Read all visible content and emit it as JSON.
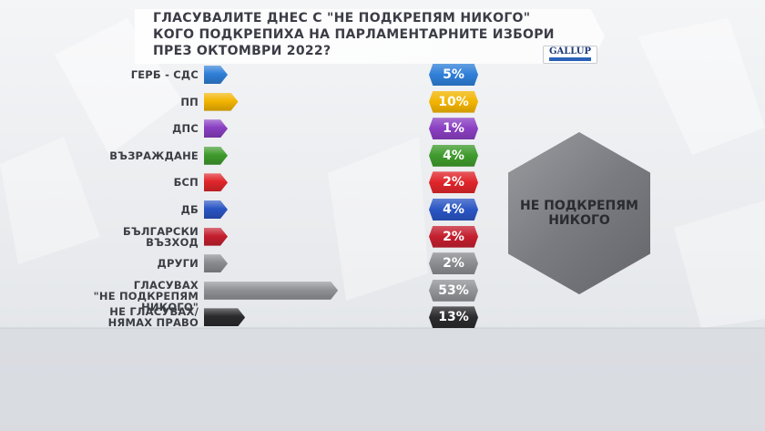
{
  "title": {
    "line1": "ГЛАСУВАЛИТЕ ДНЕС С \"НЕ ПОДКРЕПЯМ НИКОГО\"",
    "line2": "КОГО ПОДКРЕПИХА НА ПАРЛАМЕНТАРНИТЕ ИЗБОРИ",
    "line3": "ПРЕЗ ОКТОМВРИ 2022?"
  },
  "logo": {
    "text": "GALLUP",
    "icon": "gallup-logo"
  },
  "highlight": {
    "line1": "НЕ ПОДКРЕПЯМ",
    "line2": "НИКОГО",
    "color": "#7a7b80"
  },
  "chart_data": {
    "type": "bar",
    "orientation": "horizontal",
    "title": "ГЛАСУВАЛИТЕ ДНЕС С \"НЕ ПОДКРЕПЯМ НИКОГО\" КОГО ПОДКРЕПИХА НА ПАРЛАМЕНТАРНИТЕ ИЗБОРИ ПРЕЗ ОКТОМВРИ 2022?",
    "unit": "%",
    "value_labels": [
      "5%",
      "10%",
      "1%",
      "4%",
      "2%",
      "4%",
      "2%",
      "2%",
      "53%",
      "13%"
    ],
    "categories": [
      {
        "line1": "ГЕРБ - СДС",
        "line2": "",
        "value": 5,
        "color": "#2f7fd8"
      },
      {
        "line1": "ПП",
        "line2": "",
        "value": 10,
        "color": "#f2b400"
      },
      {
        "line1": "ДПС",
        "line2": "",
        "value": 1,
        "color": "#8a3fc2"
      },
      {
        "line1": "ВЪЗРАЖДАНЕ",
        "line2": "",
        "value": 4,
        "color": "#3f9a2c"
      },
      {
        "line1": "БСП",
        "line2": "",
        "value": 2,
        "color": "#e0262b"
      },
      {
        "line1": "ДБ",
        "line2": "",
        "value": 4,
        "color": "#2a55c4"
      },
      {
        "line1": "БЪЛГАРСКИ",
        "line2": "ВЪЗХОД",
        "value": 2,
        "color": "#c41e2e"
      },
      {
        "line1": "ДРУГИ",
        "line2": "",
        "value": 2,
        "color": "#8a8c90"
      },
      {
        "line1": "ГЛАСУВАХ",
        "line2": "\"НЕ ПОДКРЕПЯМ НИКОГО\"",
        "value": 53,
        "color": "#909296"
      },
      {
        "line1": "НЕ ГЛАСУВАХ/",
        "line2": "НЯМАХ ПРАВО",
        "value": 13,
        "color": "#2b2b2e"
      }
    ]
  }
}
